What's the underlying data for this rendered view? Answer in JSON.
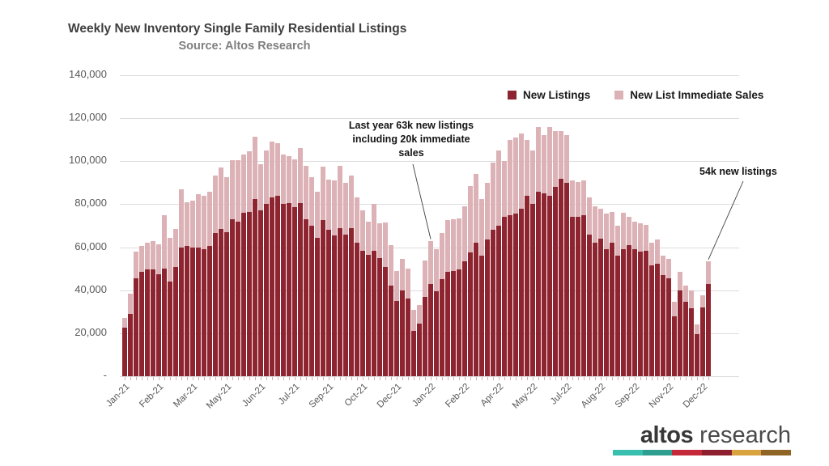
{
  "header": {
    "title": "Weekly New Inventory Single Family Residential Listings",
    "subtitle": "Source: Altos Research"
  },
  "chart_data": {
    "type": "bar",
    "stacked": true,
    "title": "Weekly New Inventory Single Family Residential Listings",
    "subtitle": "Source: Altos Research",
    "xlabel": "",
    "ylabel": "",
    "ylim": [
      0,
      140000
    ],
    "grid": true,
    "legend_position": "top-right",
    "y_ticks": [
      "140,000",
      "120,000",
      "100,000",
      "80,000",
      "60,000",
      "40,000",
      "20,000",
      "-"
    ],
    "x_labels_shown": [
      "Jan-21",
      "Feb-21",
      "Mar-21",
      "May-21",
      "Jun-21",
      "Jul-21",
      "Sep-21",
      "Oct-21",
      "Dec-21",
      "Jan-22",
      "Feb-22",
      "Apr-22",
      "May-22",
      "Jul-22",
      "Aug-22",
      "Sep-22",
      "Nov-22",
      "Dec-22"
    ],
    "label_every_n_bars": 6,
    "bar_count": 104,
    "series": [
      {
        "name": "New Listings",
        "color": "#8E242F",
        "values": [
          22500,
          29000,
          45500,
          48500,
          49500,
          49500,
          47500,
          50000,
          44000,
          51000,
          60000,
          60500,
          60000,
          60000,
          59000,
          60500,
          66500,
          68500,
          67000,
          73000,
          72000,
          76000,
          76500,
          82500,
          77000,
          80000,
          83000,
          84000,
          80000,
          80500,
          78500,
          80500,
          73000,
          70000,
          64500,
          72500,
          68000,
          65500,
          69000,
          66000,
          69000,
          62000,
          58500,
          56500,
          58500,
          55000,
          51000,
          42000,
          35000,
          40000,
          36000,
          21000,
          24500,
          37000,
          43000,
          39500,
          45000,
          48500,
          49000,
          49500,
          53500,
          57500,
          62000,
          56000,
          63500,
          68000,
          70000,
          74000,
          75000,
          75500,
          78000,
          84000,
          80000,
          86000,
          85000,
          84000,
          88000,
          92000,
          90000,
          74000,
          74000,
          75000,
          66000,
          62000,
          64000,
          59000,
          62000,
          56000,
          59000,
          61000,
          59000,
          58000,
          58500,
          51500,
          52500,
          47000,
          45500,
          28000,
          40000,
          34500,
          31500,
          19500,
          32000,
          43000
        ]
      },
      {
        "name": "New List Immediate Sales",
        "color": "#DCB2B7",
        "values": [
          4500,
          9500,
          12500,
          12000,
          12500,
          13500,
          14000,
          25000,
          20500,
          17500,
          27000,
          20500,
          21500,
          24500,
          25000,
          25500,
          27000,
          28500,
          25500,
          27500,
          28500,
          27000,
          28000,
          29000,
          21500,
          25000,
          26000,
          24500,
          23000,
          22000,
          22500,
          25500,
          25000,
          22500,
          21500,
          25000,
          23500,
          25500,
          29000,
          24000,
          24500,
          21000,
          18500,
          15500,
          21500,
          16000,
          20500,
          19000,
          14000,
          14500,
          14000,
          10000,
          8500,
          17000,
          20000,
          19500,
          21500,
          24000,
          24000,
          24000,
          25500,
          31000,
          32000,
          26500,
          26500,
          31500,
          35000,
          26000,
          35000,
          35500,
          35000,
          26000,
          25000,
          30000,
          27000,
          32000,
          26000,
          22000,
          22000,
          17000,
          16500,
          16000,
          17000,
          17000,
          14000,
          16500,
          14500,
          14000,
          17000,
          13000,
          13000,
          13000,
          12000,
          10500,
          11000,
          9000,
          9000,
          6500,
          8500,
          7500,
          8500,
          4500,
          5500,
          10500
        ]
      }
    ]
  },
  "annotations": {
    "dec21": {
      "line1": "Last year 63k new listings",
      "line2": "including 20k immediate",
      "line3": "sales",
      "bar_index": 54
    },
    "latest": {
      "text": "54k new listings",
      "bar_index": 103
    }
  },
  "logo": {
    "brand_bold": "altos",
    "brand_light": "research",
    "band_colors": [
      "#38BFAD",
      "#2E9E90",
      "#C4293A",
      "#8E1F2E",
      "#D9A43F",
      "#8F6526"
    ]
  }
}
